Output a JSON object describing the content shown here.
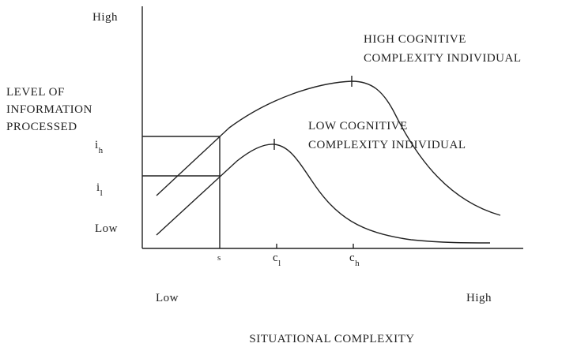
{
  "y_axis": {
    "title": [
      "LEVEL OF",
      "INFORMATION",
      "PROCESSED"
    ],
    "high": "High",
    "low": "Low",
    "markers": [
      {
        "main": "i",
        "sub": "h"
      },
      {
        "main": "i",
        "sub": "l"
      }
    ]
  },
  "x_axis": {
    "title": "SITUATIONAL COMPLEXITY",
    "low": "Low",
    "high": "High",
    "markers": [
      {
        "main": "s",
        "sub": ""
      },
      {
        "main": "c",
        "sub": "l"
      },
      {
        "main": "c",
        "sub": "h"
      }
    ]
  },
  "curves": [
    {
      "label": [
        "HIGH COGNITIVE",
        "COMPLEXITY INDIVIDUAL"
      ]
    },
    {
      "label": [
        "LOW COGNITIVE",
        "COMPLEXITY INDIVIDUAL"
      ]
    }
  ]
}
